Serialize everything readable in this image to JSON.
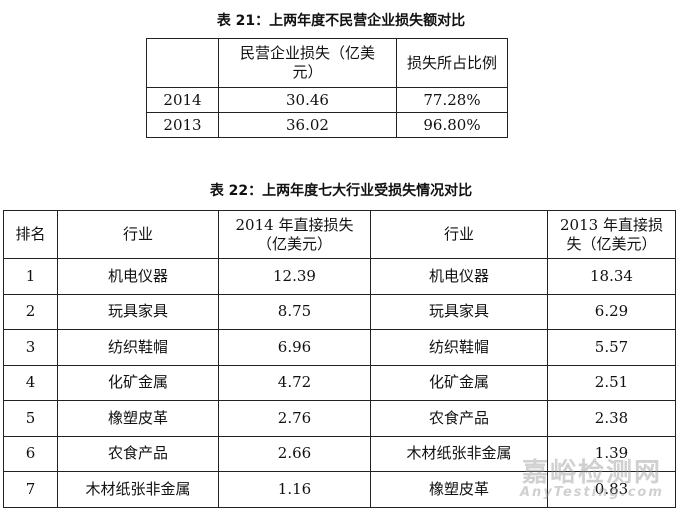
{
  "table21": {
    "title": "表 21：上两年度不民营企业损失额对比",
    "headers": [
      "",
      "民营企业损失（亿美元）",
      "损失所占比例"
    ],
    "rows": [
      [
        "2014",
        "30.46",
        "77.28%"
      ],
      [
        "2013",
        "36.02",
        "96.80%"
      ]
    ]
  },
  "table22": {
    "title": "表 22：上两年度七大行业受损失情况对比",
    "headers": [
      "排名",
      "行业",
      "2014 年直接损失（亿美元）",
      "行业",
      "2013 年直接损失（亿美元）"
    ],
    "rows": [
      [
        "1",
        "机电仪器",
        "12.39",
        "机电仪器",
        "18.34"
      ],
      [
        "2",
        "玩具家具",
        "8.75",
        "玩具家具",
        "6.29"
      ],
      [
        "3",
        "纺织鞋帽",
        "6.96",
        "纺织鞋帽",
        "5.57"
      ],
      [
        "4",
        "化矿金属",
        "4.72",
        "化矿金属",
        "2.51"
      ],
      [
        "5",
        "橡塑皮革",
        "2.76",
        "农食产品",
        "2.38"
      ],
      [
        "6",
        "农食产品",
        "2.66",
        "木材纸张非金属",
        "1.39"
      ],
      [
        "7",
        "木材纸张非金属",
        "1.16",
        "橡塑皮革",
        "0.83"
      ]
    ]
  },
  "watermark": {
    "cn": "嘉峪检测网",
    "en": "AnyTesting.com"
  }
}
